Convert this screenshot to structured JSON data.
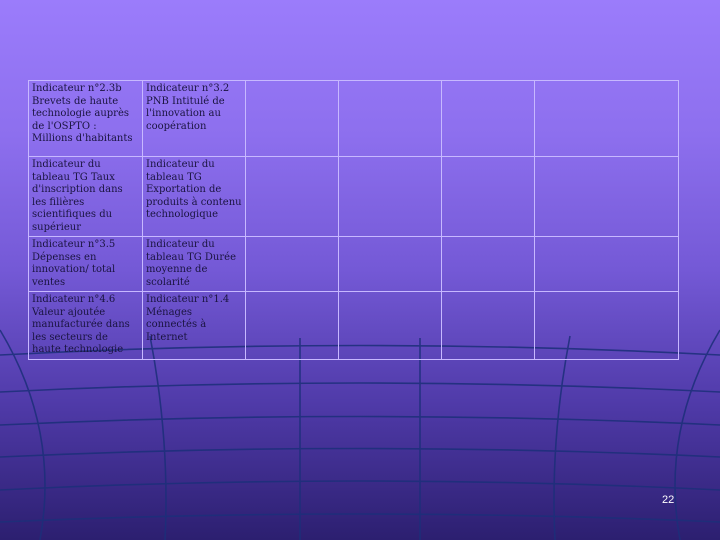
{
  "table": {
    "rows": [
      [
        "Indicateur n°2.3b Brevets de haute technologie auprès de l'OSPTO : Millions d'habitants",
        "Indicateur n°3.2 PNB Intitulé de l'innovation au coopération",
        "",
        "",
        "",
        ""
      ],
      [
        "Indicateur du tableau TG Taux d'inscription dans les filières scientifiques du supérieur",
        "Indicateur du tableau TG Exportation de produits à contenu technologique",
        "",
        "",
        "",
        ""
      ],
      [
        "Indicateur n°3.5 Dépenses en innovation/ total ventes",
        "Indicateur du tableau TG Durée moyenne de scolarité",
        "",
        "",
        "",
        ""
      ],
      [
        "Indicateur n°4.6 Valeur ajoutée manufacturée dans les secteurs de haute technologie",
        "Indicateur n°1.4 Ménages connectés à Internet",
        "",
        "",
        "",
        ""
      ]
    ]
  },
  "footer": {
    "slide_number": "22"
  },
  "colors": {
    "background_top": "#9b7cfb",
    "background_bottom": "#2c1f70",
    "table_border": "#c7b8ff",
    "grid_lines": "#1c2f7a"
  }
}
